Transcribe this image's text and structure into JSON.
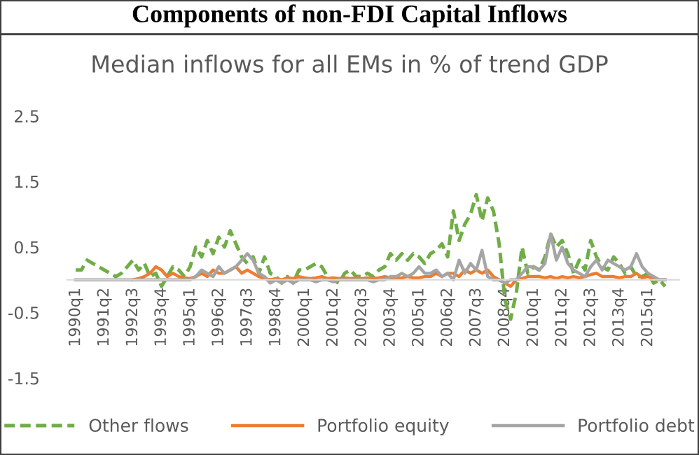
{
  "chart_data": {
    "type": "line",
    "title": "Components of non-FDI Capital Inflows",
    "subtitle": "Median inflows for all EMs in % of trend GDP",
    "categories": [
      "1990q1",
      null,
      null,
      null,
      null,
      "1991q2",
      null,
      null,
      null,
      null,
      "1992q3",
      null,
      null,
      null,
      null,
      "1993q4",
      null,
      null,
      null,
      null,
      "1995q1",
      null,
      null,
      null,
      null,
      "1996q2",
      null,
      null,
      null,
      null,
      "1997q3",
      null,
      null,
      null,
      null,
      "1998q4",
      null,
      null,
      null,
      null,
      "2000q1",
      null,
      null,
      null,
      null,
      "2001q2",
      null,
      null,
      null,
      null,
      "2002q3",
      null,
      null,
      null,
      null,
      "2003q4",
      null,
      null,
      null,
      null,
      "2005q1",
      null,
      null,
      null,
      null,
      "2006q2",
      null,
      null,
      null,
      null,
      "2007q3",
      null,
      null,
      null,
      null,
      "2008q4",
      null,
      null,
      null,
      null,
      "2010q1",
      null,
      null,
      null,
      null,
      "2011q2",
      null,
      null,
      null,
      null,
      "2012q3",
      null,
      null,
      null,
      null,
      "2013q4",
      null,
      null,
      null,
      null,
      "2015q1",
      null,
      null,
      null
    ],
    "series": [
      {
        "name": "Other flows",
        "color": "#70ad47",
        "line_style": "dashed",
        "values": [
          0.15,
          0.15,
          0.3,
          0.25,
          0.2,
          0.15,
          0.1,
          0.05,
          0.1,
          0.2,
          0.3,
          0.15,
          0.25,
          0.05,
          0.1,
          -0.1,
          0.05,
          0.2,
          0.15,
          0.05,
          0.2,
          0.5,
          0.35,
          0.6,
          0.4,
          0.65,
          0.5,
          0.75,
          0.55,
          0.35,
          0.25,
          0.35,
          0.1,
          0.35,
          0.1,
          0.05,
          -0.05,
          0.05,
          -0.05,
          0.15,
          0.15,
          0.2,
          0.25,
          0.2,
          0.05,
          0.0,
          -0.05,
          0.1,
          0.15,
          0.05,
          0.05,
          0.1,
          0.05,
          0.15,
          0.2,
          0.4,
          0.3,
          0.4,
          0.3,
          0.4,
          0.35,
          0.25,
          0.4,
          0.45,
          0.55,
          0.35,
          1.05,
          0.6,
          0.85,
          1.0,
          1.3,
          0.9,
          1.25,
          1.05,
          0.55,
          -0.3,
          -0.6,
          -0.2,
          0.5,
          0.1,
          0.2,
          0.15,
          0.35,
          0.7,
          0.5,
          0.6,
          0.4,
          0.1,
          0.3,
          0.15,
          0.6,
          0.35,
          0.2,
          0.15,
          0.35,
          0.25,
          0.1,
          0.2,
          0.05,
          0.05,
          0.1,
          -0.05,
          0.0,
          -0.1
        ]
      },
      {
        "name": "Portfolio equity",
        "color": "#ed7d31",
        "line_style": "solid",
        "values": [
          null,
          null,
          null,
          null,
          null,
          null,
          null,
          null,
          null,
          null,
          0,
          0.02,
          0.05,
          0.1,
          0.2,
          0.15,
          0.05,
          0.1,
          0.05,
          0.03,
          0.02,
          0.05,
          0.1,
          0.05,
          0.15,
          0.1,
          0.1,
          0.15,
          0.2,
          0.1,
          0.15,
          0.1,
          0.05,
          0.02,
          0.0,
          0.02,
          0.0,
          0.03,
          0.02,
          0.05,
          0.03,
          0.02,
          0.03,
          0.05,
          0.02,
          0.03,
          0.02,
          0.03,
          0.02,
          0.03,
          0.02,
          0.03,
          0.02,
          0.03,
          0.05,
          0.03,
          0.02,
          0.03,
          0.05,
          0.03,
          0.03,
          0.05,
          0.05,
          0.1,
          0.05,
          0.1,
          0.1,
          0.05,
          0.15,
          0.1,
          0.15,
          0.1,
          0.15,
          0.05,
          0.0,
          -0.05,
          -0.1,
          0.0,
          0.02,
          0.05,
          0.05,
          0.05,
          0.03,
          0.05,
          0.02,
          0.05,
          0.03,
          0.05,
          0.03,
          0.05,
          0.08,
          0.1,
          0.05,
          0.05,
          0.05,
          0.03,
          0.05,
          0.05,
          0.1,
          0.03,
          0.05,
          0.02,
          0.0,
          0.0
        ]
      },
      {
        "name": "Portfolio debt",
        "color": "#a5a5a5",
        "line_style": "solid",
        "values": [
          0,
          0,
          0,
          0,
          0,
          0,
          0,
          0,
          0,
          0,
          0,
          0,
          0,
          0,
          0,
          0,
          0,
          0,
          0,
          0,
          0,
          0.05,
          0.15,
          0.1,
          0.05,
          0.2,
          0.1,
          0.15,
          0.2,
          0.3,
          0.4,
          0.3,
          0.1,
          0.05,
          -0.05,
          0.0,
          -0.05,
          0.0,
          -0.05,
          0.0,
          0.0,
          0.0,
          -0.03,
          0.0,
          0.0,
          -0.03,
          0.0,
          0.0,
          0.0,
          0.0,
          0.0,
          0.0,
          -0.03,
          0.0,
          0.0,
          0.05,
          0.05,
          0.1,
          0.05,
          0.1,
          0.2,
          0.1,
          0.1,
          0.15,
          0.05,
          0.1,
          0.0,
          0.3,
          0.1,
          0.25,
          0.15,
          0.45,
          0.05,
          0.0,
          0.0,
          -0.05,
          0.0,
          0.0,
          0.1,
          0.2,
          0.2,
          0.15,
          0.25,
          0.7,
          0.3,
          0.5,
          0.25,
          0.15,
          0.1,
          0.05,
          0.2,
          0.3,
          0.15,
          0.3,
          0.25,
          0.2,
          0.15,
          0.2,
          0.4,
          0.2,
          0.1,
          0.05,
          0.0,
          0.0
        ]
      }
    ],
    "ylim": [
      -1.5,
      2.5
    ],
    "yticks": [
      -1.5,
      -0.5,
      0.5,
      1.5,
      2.5
    ],
    "grid": false,
    "legend": "bottom",
    "marker": "none"
  }
}
